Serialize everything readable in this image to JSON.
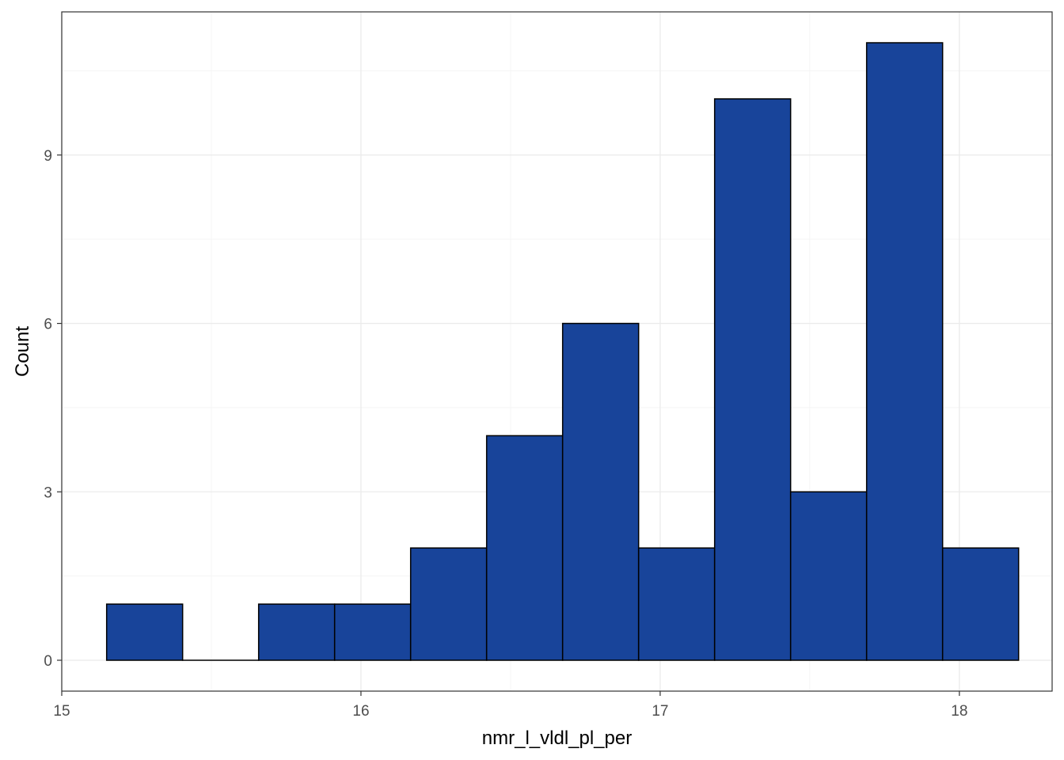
{
  "chart_data": {
    "type": "bar",
    "subtype": "histogram",
    "xlabel": "nmr_l_vldl_pl_per",
    "ylabel": "Count",
    "xlim": [
      15,
      18.31
    ],
    "ylim": [
      -0.55,
      11.55
    ],
    "x_ticks": [
      15,
      16,
      17,
      18
    ],
    "x_tick_labels": [
      "15",
      "16",
      "17",
      "18"
    ],
    "y_ticks": [
      0,
      3,
      6,
      9
    ],
    "y_tick_labels": [
      "0",
      "3",
      "6",
      "9"
    ],
    "bins": [
      {
        "x0": 15.15,
        "x1": 15.404,
        "count": 1
      },
      {
        "x0": 15.404,
        "x1": 15.658,
        "count": 0
      },
      {
        "x0": 15.658,
        "x1": 15.912,
        "count": 1
      },
      {
        "x0": 15.912,
        "x1": 16.166,
        "count": 1
      },
      {
        "x0": 16.166,
        "x1": 16.42,
        "count": 2
      },
      {
        "x0": 16.42,
        "x1": 16.674,
        "count": 4
      },
      {
        "x0": 16.674,
        "x1": 16.928,
        "count": 6
      },
      {
        "x0": 16.928,
        "x1": 17.182,
        "count": 2
      },
      {
        "x0": 17.182,
        "x1": 17.436,
        "count": 10
      },
      {
        "x0": 17.436,
        "x1": 17.69,
        "count": 3
      },
      {
        "x0": 17.69,
        "x1": 17.944,
        "count": 11
      },
      {
        "x0": 17.944,
        "x1": 18.198,
        "count": 2
      }
    ],
    "grid": true,
    "legend": "none",
    "colors": {
      "bar_fill": "#18449A",
      "bar_stroke": "#000000",
      "panel_border": "#333333",
      "grid_major": "#EBEBEB",
      "grid_minor": "#F5F5F5",
      "tick_text": "#4D4D4D",
      "title_text": "#000000"
    }
  }
}
